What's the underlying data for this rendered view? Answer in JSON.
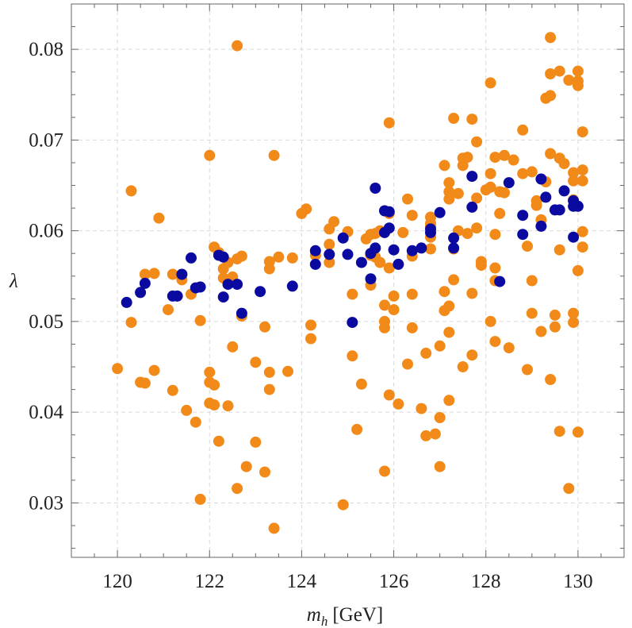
{
  "chart_data": {
    "type": "scatter",
    "title": "",
    "xlabel_main": "m",
    "xlabel_sub": "h",
    "xlabel_unit": "[GeV]",
    "ylabel": "λ",
    "xlim": [
      119,
      131
    ],
    "ylim": [
      0.024,
      0.085
    ],
    "xticks": [
      120,
      122,
      124,
      126,
      128,
      130
    ],
    "yticks": [
      0.03,
      0.04,
      0.05,
      0.06,
      0.07,
      0.08
    ],
    "xtick_labels": [
      "120",
      "122",
      "124",
      "126",
      "128",
      "130"
    ],
    "ytick_labels": [
      "0.03",
      "0.04",
      "0.05",
      "0.06",
      "0.07",
      "0.08"
    ],
    "grid": true,
    "legend": "none",
    "series": [
      {
        "color": "#f28a1a",
        "points": [
          [
            120.0,
            0.0448
          ],
          [
            120.3,
            0.0644
          ],
          [
            120.3,
            0.0499
          ],
          [
            120.5,
            0.0433
          ],
          [
            120.6,
            0.0432
          ],
          [
            120.6,
            0.0552
          ],
          [
            120.8,
            0.0553
          ],
          [
            120.8,
            0.0446
          ],
          [
            120.9,
            0.0614
          ],
          [
            121.1,
            0.0513
          ],
          [
            121.2,
            0.0424
          ],
          [
            121.2,
            0.0552
          ],
          [
            121.4,
            0.0546
          ],
          [
            121.5,
            0.0402
          ],
          [
            121.6,
            0.053
          ],
          [
            121.7,
            0.0389
          ],
          [
            121.8,
            0.0501
          ],
          [
            121.8,
            0.0304
          ],
          [
            122.0,
            0.0683
          ],
          [
            122.0,
            0.0444
          ],
          [
            122.0,
            0.0433
          ],
          [
            122.0,
            0.041
          ],
          [
            122.1,
            0.0582
          ],
          [
            122.1,
            0.043
          ],
          [
            122.1,
            0.0408
          ],
          [
            122.2,
            0.0368
          ],
          [
            122.2,
            0.0576
          ],
          [
            122.3,
            0.0558
          ],
          [
            122.3,
            0.0548
          ],
          [
            122.4,
            0.0565
          ],
          [
            122.4,
            0.0407
          ],
          [
            122.5,
            0.0549
          ],
          [
            122.5,
            0.0472
          ],
          [
            122.6,
            0.0804
          ],
          [
            122.6,
            0.0316
          ],
          [
            122.6,
            0.0569
          ],
          [
            122.7,
            0.0572
          ],
          [
            122.7,
            0.0506
          ],
          [
            122.8,
            0.034
          ],
          [
            123.0,
            0.0455
          ],
          [
            123.0,
            0.0367
          ],
          [
            123.2,
            0.0334
          ],
          [
            123.2,
            0.0494
          ],
          [
            123.3,
            0.0566
          ],
          [
            123.3,
            0.0558
          ],
          [
            123.3,
            0.0444
          ],
          [
            123.3,
            0.0425
          ],
          [
            123.4,
            0.0272
          ],
          [
            123.4,
            0.0683
          ],
          [
            123.5,
            0.0571
          ],
          [
            123.7,
            0.0445
          ],
          [
            123.8,
            0.057
          ],
          [
            124.0,
            0.0619
          ],
          [
            124.1,
            0.0624
          ],
          [
            124.2,
            0.0496
          ],
          [
            124.2,
            0.0481
          ],
          [
            124.3,
            0.0573
          ],
          [
            124.6,
            0.0602
          ],
          [
            124.6,
            0.0585
          ],
          [
            124.6,
            0.0565
          ],
          [
            124.7,
            0.061
          ],
          [
            124.9,
            0.0298
          ],
          [
            125.0,
            0.0599
          ],
          [
            125.1,
            0.053
          ],
          [
            125.1,
            0.0462
          ],
          [
            125.2,
            0.0381
          ],
          [
            125.3,
            0.0431
          ],
          [
            125.4,
            0.0591
          ],
          [
            125.5,
            0.0596
          ],
          [
            125.5,
            0.0573
          ],
          [
            125.5,
            0.054
          ],
          [
            125.6,
            0.0597
          ],
          [
            125.6,
            0.0571
          ],
          [
            125.7,
            0.06
          ],
          [
            125.7,
            0.0565
          ],
          [
            125.8,
            0.0335
          ],
          [
            125.8,
            0.05
          ],
          [
            125.8,
            0.0518
          ],
          [
            125.8,
            0.0493
          ],
          [
            125.9,
            0.0619
          ],
          [
            125.9,
            0.0559
          ],
          [
            125.9,
            0.0719
          ],
          [
            125.9,
            0.0419
          ],
          [
            126.0,
            0.0513
          ],
          [
            126.0,
            0.0528
          ],
          [
            126.1,
            0.0409
          ],
          [
            126.2,
            0.0598
          ],
          [
            126.3,
            0.0635
          ],
          [
            126.3,
            0.0453
          ],
          [
            126.4,
            0.0617
          ],
          [
            126.4,
            0.0572
          ],
          [
            126.4,
            0.053
          ],
          [
            126.4,
            0.0493
          ],
          [
            126.6,
            0.0404
          ],
          [
            126.7,
            0.0374
          ],
          [
            126.7,
            0.0465
          ],
          [
            126.8,
            0.0615
          ],
          [
            126.8,
            0.0608
          ],
          [
            126.8,
            0.0605
          ],
          [
            126.8,
            0.058
          ],
          [
            126.8,
            0.0593
          ],
          [
            126.9,
            0.0376
          ],
          [
            127.0,
            0.0473
          ],
          [
            127.0,
            0.034
          ],
          [
            127.0,
            0.0394
          ],
          [
            127.1,
            0.0672
          ],
          [
            127.1,
            0.0533
          ],
          [
            127.1,
            0.0512
          ],
          [
            127.2,
            0.0643
          ],
          [
            127.2,
            0.0635
          ],
          [
            127.2,
            0.0653
          ],
          [
            127.2,
            0.0517
          ],
          [
            127.2,
            0.0488
          ],
          [
            127.2,
            0.0413
          ],
          [
            127.3,
            0.0724
          ],
          [
            127.3,
            0.0546
          ],
          [
            127.3,
            0.058
          ],
          [
            127.4,
            0.0641
          ],
          [
            127.4,
            0.06
          ],
          [
            127.5,
            0.068
          ],
          [
            127.5,
            0.0672
          ],
          [
            127.5,
            0.045
          ],
          [
            127.6,
            0.0597
          ],
          [
            127.6,
            0.0681
          ],
          [
            127.7,
            0.0723
          ],
          [
            127.7,
            0.0531
          ],
          [
            127.7,
            0.0463
          ],
          [
            127.8,
            0.0698
          ],
          [
            127.8,
            0.0636
          ],
          [
            127.8,
            0.0603
          ],
          [
            127.9,
            0.0562
          ],
          [
            127.9,
            0.0566
          ],
          [
            128.0,
            0.0645
          ],
          [
            128.1,
            0.0763
          ],
          [
            128.1,
            0.0663
          ],
          [
            128.1,
            0.0648
          ],
          [
            128.1,
            0.05
          ],
          [
            128.2,
            0.0681
          ],
          [
            128.2,
            0.0596
          ],
          [
            128.2,
            0.0559
          ],
          [
            128.2,
            0.0545
          ],
          [
            128.2,
            0.0478
          ],
          [
            128.3,
            0.0643
          ],
          [
            128.3,
            0.0619
          ],
          [
            128.4,
            0.0683
          ],
          [
            128.4,
            0.0642
          ],
          [
            128.5,
            0.0471
          ],
          [
            128.6,
            0.0678
          ],
          [
            128.8,
            0.0711
          ],
          [
            128.8,
            0.0663
          ],
          [
            128.9,
            0.0583
          ],
          [
            128.9,
            0.0447
          ],
          [
            129.0,
            0.0665
          ],
          [
            129.0,
            0.0509
          ],
          [
            129.0,
            0.0545
          ],
          [
            129.1,
            0.0628
          ],
          [
            129.1,
            0.0633
          ],
          [
            129.2,
            0.0612
          ],
          [
            129.2,
            0.0489
          ],
          [
            129.3,
            0.0746
          ],
          [
            129.3,
            0.0654
          ],
          [
            129.4,
            0.0813
          ],
          [
            129.4,
            0.0749
          ],
          [
            129.4,
            0.0773
          ],
          [
            129.4,
            0.0685
          ],
          [
            129.4,
            0.0436
          ],
          [
            129.5,
            0.0507
          ],
          [
            129.5,
            0.0494
          ],
          [
            129.6,
            0.068
          ],
          [
            129.6,
            0.0776
          ],
          [
            129.6,
            0.0579
          ],
          [
            129.6,
            0.0379
          ],
          [
            129.7,
            0.0674
          ],
          [
            129.8,
            0.0316
          ],
          [
            129.8,
            0.0766
          ],
          [
            129.9,
            0.0664
          ],
          [
            129.9,
            0.0655
          ],
          [
            129.9,
            0.0634
          ],
          [
            129.9,
            0.0509
          ],
          [
            129.9,
            0.0499
          ],
          [
            130.0,
            0.0765
          ],
          [
            130.0,
            0.076
          ],
          [
            130.0,
            0.0776
          ],
          [
            130.0,
            0.0556
          ],
          [
            130.0,
            0.0378
          ],
          [
            130.1,
            0.0709
          ],
          [
            130.1,
            0.0667
          ],
          [
            130.1,
            0.0655
          ],
          [
            130.1,
            0.0599
          ],
          [
            130.1,
            0.0582
          ]
        ]
      },
      {
        "color": "#0a0aa0",
        "points": [
          [
            120.2,
            0.0521
          ],
          [
            120.5,
            0.0532
          ],
          [
            120.6,
            0.0542
          ],
          [
            121.2,
            0.0528
          ],
          [
            121.3,
            0.0528
          ],
          [
            121.4,
            0.0552
          ],
          [
            121.6,
            0.057
          ],
          [
            121.7,
            0.0537
          ],
          [
            121.8,
            0.0538
          ],
          [
            122.2,
            0.0573
          ],
          [
            122.3,
            0.0571
          ],
          [
            122.3,
            0.0527
          ],
          [
            122.4,
            0.0541
          ],
          [
            122.6,
            0.0541
          ],
          [
            122.7,
            0.0509
          ],
          [
            123.1,
            0.0533
          ],
          [
            123.8,
            0.0539
          ],
          [
            124.3,
            0.0578
          ],
          [
            124.3,
            0.0563
          ],
          [
            124.6,
            0.0574
          ],
          [
            124.9,
            0.0592
          ],
          [
            125.0,
            0.0574
          ],
          [
            125.1,
            0.0499
          ],
          [
            125.3,
            0.0565
          ],
          [
            125.5,
            0.0575
          ],
          [
            125.5,
            0.0547
          ],
          [
            125.6,
            0.0647
          ],
          [
            125.6,
            0.0581
          ],
          [
            125.8,
            0.0622
          ],
          [
            125.8,
            0.0598
          ],
          [
            125.9,
            0.0603
          ],
          [
            125.9,
            0.0621
          ],
          [
            126.0,
            0.0579
          ],
          [
            126.1,
            0.0563
          ],
          [
            126.4,
            0.0578
          ],
          [
            126.6,
            0.0581
          ],
          [
            126.8,
            0.0602
          ],
          [
            126.8,
            0.0598
          ],
          [
            127.0,
            0.062
          ],
          [
            127.3,
            0.0592
          ],
          [
            127.3,
            0.0581
          ],
          [
            127.7,
            0.066
          ],
          [
            127.7,
            0.0626
          ],
          [
            128.3,
            0.0544
          ],
          [
            128.5,
            0.0653
          ],
          [
            128.8,
            0.0617
          ],
          [
            128.8,
            0.0596
          ],
          [
            129.2,
            0.0657
          ],
          [
            129.2,
            0.0605
          ],
          [
            129.3,
            0.0637
          ],
          [
            129.5,
            0.0623
          ],
          [
            129.6,
            0.0623
          ],
          [
            129.7,
            0.0644
          ],
          [
            129.9,
            0.0633
          ],
          [
            129.9,
            0.0593
          ],
          [
            129.9,
            0.0627
          ],
          [
            130.0,
            0.0627
          ]
        ]
      }
    ]
  }
}
